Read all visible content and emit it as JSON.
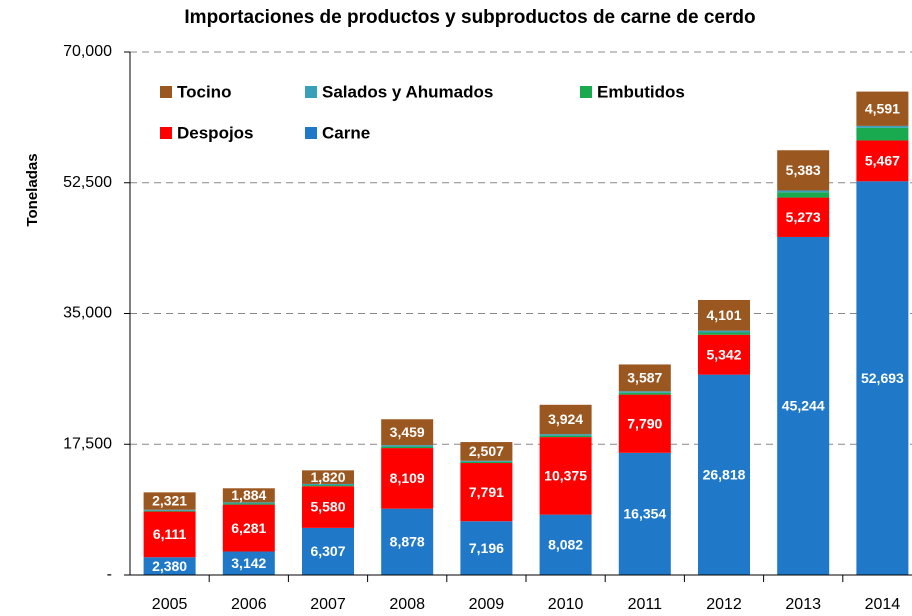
{
  "chart_data": {
    "type": "stacked_bar",
    "title": "Importaciones de productos y subproductos de carne de cerdo",
    "y_label": "Toneladas",
    "categories": [
      "2005",
      "2006",
      "2007",
      "2008",
      "2009",
      "2010",
      "2011",
      "2012",
      "2013",
      "2014"
    ],
    "series": [
      {
        "name": "Tocino",
        "color": "#9b5720",
        "values": [
          2321,
          1884,
          1820,
          3459,
          2507,
          3924,
          3587,
          4101,
          5383,
          4591
        ],
        "value_labels": [
          "2,321",
          "1,884",
          "1,820",
          "3,459",
          "2,507",
          "3,924",
          "3,587",
          "4,101",
          "5,383",
          "4,591"
        ]
      },
      {
        "name": "Salados y Ahumados",
        "color": "#3a9fb8",
        "values": [
          150,
          150,
          150,
          200,
          150,
          200,
          200,
          250,
          250,
          250
        ]
      },
      {
        "name": "Embutidos",
        "color": "#19a94f",
        "values": [
          100,
          150,
          150,
          200,
          150,
          200,
          250,
          300,
          700,
          1700
        ]
      },
      {
        "name": "Despojos",
        "color": "#ff0000",
        "values": [
          6111,
          6281,
          5580,
          8109,
          7791,
          10375,
          7790,
          5342,
          5273,
          5467
        ],
        "value_labels": [
          "6,111",
          "6,281",
          "5,580",
          "8,109",
          "7,791",
          "10,375",
          "7,790",
          "5,342",
          "5,273",
          "5,467"
        ]
      },
      {
        "name": "Carne",
        "color": "#1f78c8",
        "values": [
          2380,
          3142,
          6307,
          8878,
          7196,
          8082,
          16354,
          26818,
          45244,
          52693
        ],
        "value_labels": [
          "2,380",
          "3,142",
          "6,307",
          "8,878",
          "7,196",
          "8,082",
          "16,354",
          "26,818",
          "45,244",
          "52,693"
        ]
      }
    ],
    "ylim": [
      0,
      70000
    ],
    "yticks": [
      {
        "value": 0,
        "label": "-"
      },
      {
        "value": 17500,
        "label": "17,500"
      },
      {
        "value": 35000,
        "label": "35,000"
      },
      {
        "value": 52500,
        "label": "52,500"
      },
      {
        "value": 70000,
        "label": "70,000"
      }
    ],
    "grid": true
  }
}
